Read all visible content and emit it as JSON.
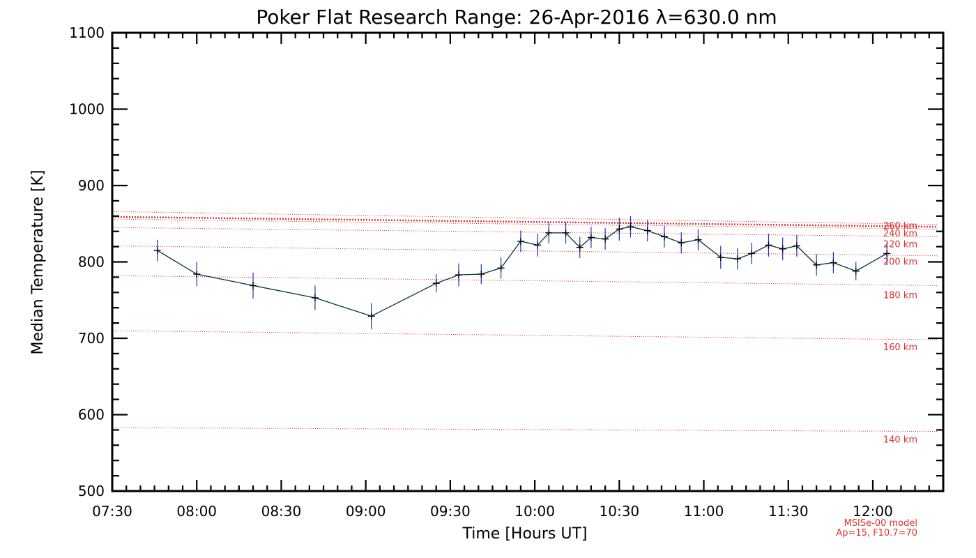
{
  "chart_data": {
    "type": "line",
    "title": "Poker Flat Research Range: 26-Apr-2016 λ=630.0 nm",
    "xlabel": "Time [Hours UT]",
    "ylabel": "Median Temperature [K]",
    "xlim": [
      "07:30",
      "12:25"
    ],
    "ylim": [
      500,
      1100
    ],
    "x_ticks": [
      "07:30",
      "08:00",
      "08:30",
      "09:00",
      "09:30",
      "10:00",
      "10:30",
      "11:00",
      "11:30",
      "12:00"
    ],
    "y_ticks": [
      500,
      600,
      700,
      800,
      900,
      1000,
      1100
    ],
    "series": [
      {
        "color": "#003344",
        "error_color": "#2030c0",
        "points": [
          {
            "t": "07:46",
            "y": 815,
            "err": 14
          },
          {
            "t": "08:00",
            "y": 784,
            "err": 16
          },
          {
            "t": "08:20",
            "y": 769,
            "err": 17
          },
          {
            "t": "08:42",
            "y": 753,
            "err": 16
          },
          {
            "t": "09:02",
            "y": 729,
            "err": 17
          },
          {
            "t": "09:25",
            "y": 772,
            "err": 12
          },
          {
            "t": "09:33",
            "y": 783,
            "err": 15
          },
          {
            "t": "09:41",
            "y": 784,
            "err": 13
          },
          {
            "t": "09:48",
            "y": 792,
            "err": 14
          },
          {
            "t": "09:55",
            "y": 827,
            "err": 14
          },
          {
            "t": "10:01",
            "y": 822,
            "err": 15
          },
          {
            "t": "10:05",
            "y": 838,
            "err": 14
          },
          {
            "t": "10:11",
            "y": 838,
            "err": 14
          },
          {
            "t": "10:16",
            "y": 819,
            "err": 14
          },
          {
            "t": "10:20",
            "y": 832,
            "err": 14
          },
          {
            "t": "10:25",
            "y": 830,
            "err": 14
          },
          {
            "t": "10:30",
            "y": 843,
            "err": 15
          },
          {
            "t": "10:34",
            "y": 846,
            "err": 14
          },
          {
            "t": "10:40",
            "y": 841,
            "err": 14
          },
          {
            "t": "10:46",
            "y": 833,
            "err": 14
          },
          {
            "t": "10:52",
            "y": 825,
            "err": 14
          },
          {
            "t": "10:58",
            "y": 829,
            "err": 14
          },
          {
            "t": "11:06",
            "y": 806,
            "err": 15
          },
          {
            "t": "11:12",
            "y": 804,
            "err": 14
          },
          {
            "t": "11:17",
            "y": 811,
            "err": 14
          },
          {
            "t": "11:23",
            "y": 822,
            "err": 15
          },
          {
            "t": "11:28",
            "y": 817,
            "err": 15
          },
          {
            "t": "11:33",
            "y": 821,
            "err": 14
          },
          {
            "t": "11:40",
            "y": 796,
            "err": 14
          },
          {
            "t": "11:46",
            "y": 799,
            "err": 14
          },
          {
            "t": "11:54",
            "y": 788,
            "err": 12
          },
          {
            "t": "12:05",
            "y": 811,
            "err": 14
          }
        ]
      }
    ],
    "model_lines": [
      {
        "label": "140 km",
        "start": 583,
        "end": 578,
        "bold": false
      },
      {
        "label": "160 km",
        "start": 710,
        "end": 698,
        "bold": false
      },
      {
        "label": "180 km",
        "start": 782,
        "end": 769,
        "bold": false
      },
      {
        "label": "200 km",
        "start": 821,
        "end": 808,
        "bold": false
      },
      {
        "label": "220 km",
        "start": 845,
        "end": 833,
        "bold": false
      },
      {
        "label": "240 km",
        "start": 856,
        "end": 843,
        "bold": false
      },
      {
        "label": "260 km",
        "start": 866,
        "end": 849,
        "bold": false
      },
      {
        "label": "",
        "start": 859,
        "end": 846,
        "bold": true
      }
    ],
    "model_label_y": [
      567,
      688,
      756,
      800,
      823,
      837,
      847
    ],
    "model_line_color": "#e03030",
    "model_info": [
      "MSISe-00 model",
      "Ap=15, F10.7=70"
    ]
  }
}
